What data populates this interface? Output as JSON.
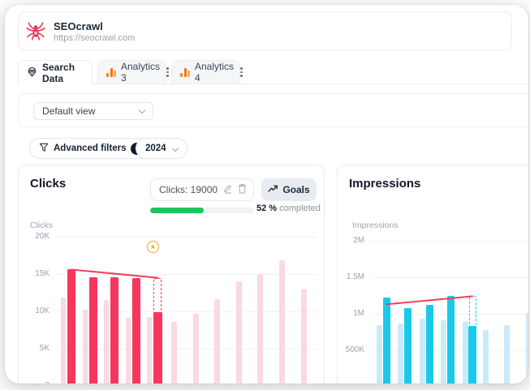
{
  "site": {
    "name": "SEOcrawl",
    "url": "https://seocrawl.com"
  },
  "tabs": [
    {
      "label": "Search Data",
      "active": true
    },
    {
      "label": "Analytics 3",
      "active": false
    },
    {
      "label": "Analytics 4",
      "active": false
    }
  ],
  "toolbar": {
    "view_select": "Default view"
  },
  "filters": {
    "advanced_label": "Advanced filters",
    "badge": "0",
    "year": "2024"
  },
  "goal": {
    "input_value": "Clicks: 19000",
    "button_label": "Goals",
    "progress_pct": 52,
    "pct_label": "52 %",
    "completed_label": "completed",
    "bar_color": "#1fc35b"
  },
  "chart_data": [
    {
      "type": "bar",
      "title": "Clicks",
      "ylabel": "Clicks",
      "ymax": 20000,
      "grid": "horizontal",
      "legend": "none",
      "yticks": [
        {
          "label": "20K",
          "value": 20000
        },
        {
          "label": "15K",
          "value": 15000
        },
        {
          "label": "10K",
          "value": 10000
        },
        {
          "label": "5K",
          "value": 5000
        },
        {
          "label": "0",
          "value": 0
        }
      ],
      "series": [
        {
          "name": "comparison-period",
          "color": "#fbd9e1",
          "values": [
            11800,
            10200,
            11500,
            9100,
            9200,
            8600,
            9700,
            11600,
            14000,
            15000,
            16800,
            12900
          ]
        },
        {
          "name": "current-period",
          "color": "#f7365e",
          "values": [
            15700,
            14600,
            14600,
            14500
          ]
        }
      ],
      "forecast": {
        "month": 4,
        "actual": 9900,
        "projected": 14500
      },
      "trend": {
        "start": 15600,
        "end": 14500,
        "color": "#ef4159"
      },
      "goal_marker": {
        "month": 4,
        "value": 18600,
        "color": "#f0a232",
        "glyph": "★"
      }
    },
    {
      "type": "bar",
      "title": "Impressions",
      "ylabel": "Impressions",
      "ymax": 2000000,
      "grid": "horizontal",
      "legend": "none",
      "yticks": [
        {
          "label": "2M",
          "value": 2000000
        },
        {
          "label": "1.5M",
          "value": 1500000
        },
        {
          "label": "1M",
          "value": 1000000
        },
        {
          "label": "500K",
          "value": 500000
        },
        {
          "label": "",
          "value": 0
        }
      ],
      "series": [
        {
          "name": "comparison-period",
          "color": "#c9ebf8",
          "values": [
            850000,
            870000,
            930000,
            910000,
            890000,
            780000,
            850000,
            1010000
          ]
        },
        {
          "name": "current-period",
          "color": "#1ac9ea",
          "values": [
            1220000,
            1080000,
            1120000,
            1240000
          ]
        }
      ],
      "forecast": {
        "month": 4,
        "actual": 840000,
        "projected": 1250000
      },
      "trend": {
        "start": 1130000,
        "end": 1240000,
        "color": "#ef4159"
      }
    }
  ]
}
